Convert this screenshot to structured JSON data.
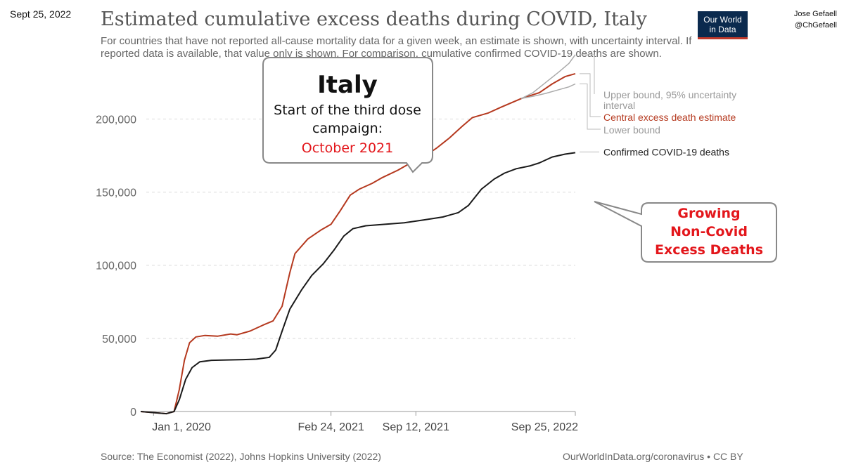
{
  "header": {
    "date": "Sept 25, 2022",
    "title": "Estimated cumulative excess deaths during COVID, Italy",
    "subtitle": "For countries that have not reported all-cause mortality data for a given week, an estimate is shown, with uncertainty interval. If reported data is available, that value only is shown. For comparison, cumulative confirmed COVID-19 deaths are shown.",
    "logo_line1": "Our World",
    "logo_line2": "in Data",
    "author_name": "Jose Gefaell",
    "author_handle": "@ChGefaell"
  },
  "footer": {
    "source": "Source: The Economist (2022), Johns Hopkins University (2022)",
    "license": "OurWorldInData.org/coronavirus • CC BY"
  },
  "callout1": {
    "title": "Italy",
    "line1": "Start of the third dose",
    "line2": "campaign:",
    "line3": "October 2021"
  },
  "callout2": {
    "line1": "Growing",
    "line2": "Non-Covid",
    "line3": "Excess Deaths"
  },
  "colors": {
    "central": "#b5391f",
    "confirmed": "#1a1a1a",
    "bounds": "#aaaaaa",
    "accent_red": "#e3161b"
  },
  "chart_data": {
    "type": "line",
    "title": "Estimated cumulative excess deaths during COVID, Italy",
    "ylim": [
      0,
      230000
    ],
    "yticks": [
      0,
      50000,
      100000,
      150000,
      200000
    ],
    "ytick_labels": [
      "0",
      "50,000",
      "100,000",
      "150,000",
      "200,000"
    ],
    "x_range_months": [
      -1,
      32
    ],
    "xticks": [
      {
        "m": 0,
        "label": "Jan 1, 2020"
      },
      {
        "m": 13.8,
        "label": "Feb 24, 2021"
      },
      {
        "m": 20.4,
        "label": "Sep 12, 2021"
      },
      {
        "m": 32.8,
        "label": "Sep 25, 2022"
      }
    ],
    "series": [
      {
        "name": "Central excess death estimate",
        "label": "Central excess death estimate",
        "points": [
          [
            -1,
            0
          ],
          [
            1,
            -1500
          ],
          [
            1.6,
            0
          ],
          [
            2,
            15000
          ],
          [
            2.4,
            35000
          ],
          [
            2.8,
            47000
          ],
          [
            3.3,
            51000
          ],
          [
            4,
            52000
          ],
          [
            5,
            51500
          ],
          [
            6,
            53000
          ],
          [
            6.5,
            52500
          ],
          [
            7.5,
            55000
          ],
          [
            8.5,
            59000
          ],
          [
            9.3,
            62000
          ],
          [
            10,
            72000
          ],
          [
            10.6,
            95000
          ],
          [
            11,
            108000
          ],
          [
            12,
            118000
          ],
          [
            13,
            124000
          ],
          [
            13.8,
            128000
          ],
          [
            14.5,
            137000
          ],
          [
            15.3,
            148000
          ],
          [
            16,
            152000
          ],
          [
            17,
            156000
          ],
          [
            17.8,
            160000
          ],
          [
            19,
            165000
          ],
          [
            20.2,
            171000
          ],
          [
            21,
            174000
          ],
          [
            22,
            180000
          ],
          [
            23,
            187000
          ],
          [
            24,
            195000
          ],
          [
            24.8,
            201000
          ],
          [
            26,
            204000
          ],
          [
            27,
            208000
          ],
          [
            28.6,
            214000
          ],
          [
            30,
            218000
          ],
          [
            31,
            224000
          ],
          [
            32,
            229000
          ],
          [
            32.8,
            231000
          ]
        ]
      },
      {
        "name": "Upper bound, 95% uncertainty interval",
        "label": "Upper bound, 95% uncertainty interval",
        "points": [
          [
            28.6,
            214000
          ],
          [
            29.5,
            218000
          ],
          [
            30.5,
            225000
          ],
          [
            31.5,
            232000
          ],
          [
            32.3,
            238000
          ],
          [
            32.8,
            244000
          ]
        ]
      },
      {
        "name": "Lower bound",
        "label": "Lower bound",
        "points": [
          [
            28.6,
            214000
          ],
          [
            29.5,
            215500
          ],
          [
            30.5,
            217500
          ],
          [
            31.5,
            220000
          ],
          [
            32.3,
            222000
          ],
          [
            32.8,
            224000
          ]
        ]
      },
      {
        "name": "Confirmed COVID-19 deaths",
        "label": "Confirmed COVID-19 deaths",
        "points": [
          [
            -1,
            0
          ],
          [
            1,
            -1500
          ],
          [
            1.6,
            0
          ],
          [
            2,
            8000
          ],
          [
            2.5,
            22000
          ],
          [
            3,
            30000
          ],
          [
            3.6,
            34000
          ],
          [
            4.5,
            35000
          ],
          [
            6,
            35300
          ],
          [
            7,
            35500
          ],
          [
            8,
            35800
          ],
          [
            9,
            37000
          ],
          [
            9.5,
            42000
          ],
          [
            10,
            55000
          ],
          [
            10.6,
            70000
          ],
          [
            11.5,
            83000
          ],
          [
            12.3,
            93000
          ],
          [
            13.2,
            101000
          ],
          [
            14,
            110000
          ],
          [
            14.8,
            120000
          ],
          [
            15.5,
            125000
          ],
          [
            16.5,
            127000
          ],
          [
            18,
            128000
          ],
          [
            19.5,
            129000
          ],
          [
            21,
            131000
          ],
          [
            22.5,
            133000
          ],
          [
            23.7,
            136000
          ],
          [
            24.5,
            141000
          ],
          [
            25.5,
            152000
          ],
          [
            26.5,
            159000
          ],
          [
            27.3,
            163000
          ],
          [
            28.2,
            166000
          ],
          [
            29.3,
            168000
          ],
          [
            30,
            170000
          ],
          [
            31,
            174000
          ],
          [
            32,
            176000
          ],
          [
            32.8,
            177000
          ]
        ]
      }
    ]
  }
}
